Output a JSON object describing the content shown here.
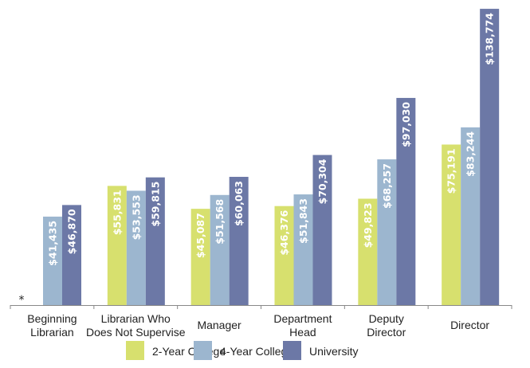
{
  "chart_data": {
    "type": "bar",
    "categories": [
      [
        "Beginning",
        "Librarian"
      ],
      [
        "Librarian Who",
        "Does Not Supervise"
      ],
      [
        "Manager"
      ],
      [
        "Department",
        "Head"
      ],
      [
        "Deputy",
        "Director"
      ],
      [
        "Director"
      ]
    ],
    "series": [
      {
        "name": "2-Year College",
        "color": "#d7e06e",
        "values": [
          null,
          55831,
          45087,
          46376,
          49823,
          75191
        ]
      },
      {
        "name": "4-Year College",
        "color": "#9cb6cf",
        "values": [
          41435,
          53553,
          51568,
          51843,
          68257,
          83244
        ]
      },
      {
        "name": "University",
        "color": "#6c78a6",
        "values": [
          46870,
          59815,
          60063,
          70304,
          97030,
          138774
        ]
      }
    ],
    "value_labels": [
      [
        null,
        "$55,831",
        "$45,087",
        "$46,376",
        "$49,823",
        "$75,191"
      ],
      [
        "$41,435",
        "$53,553",
        "$51,568",
        "$51,843",
        "$68,257",
        "$83,244"
      ],
      [
        "$46,870",
        "$59,815",
        "$60,063",
        "$70,304",
        "$97,030",
        "$138,774"
      ]
    ],
    "missing_marker": "*",
    "ylim": [
      0,
      142900
    ],
    "grid": false,
    "legend_placement": "bottom"
  }
}
